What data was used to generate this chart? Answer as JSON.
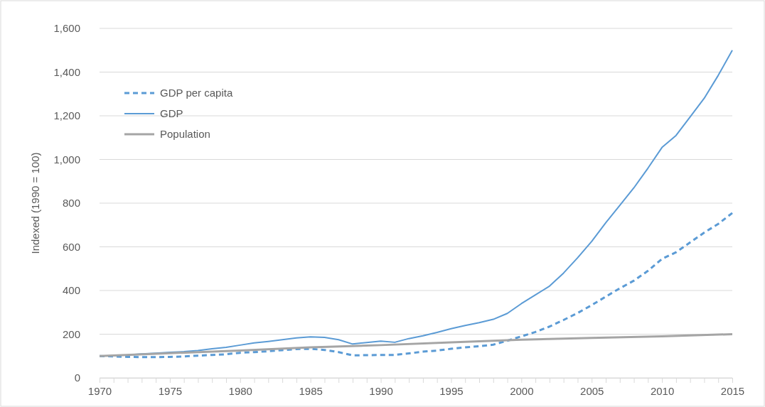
{
  "chart_data": {
    "type": "line",
    "ylabel": "Indexed (1990 = 100)",
    "xlim": [
      1970,
      2015
    ],
    "xticks": [
      1970,
      {
        "value": 1971,
        "label": null
      },
      {
        "value": 1972,
        "label": null
      },
      {
        "value": 1973,
        "label": null
      },
      {
        "value": 1974,
        "label": null
      },
      1975,
      {
        "value": 1976,
        "label": null
      },
      {
        "value": 1977,
        "label": null
      },
      {
        "value": 1978,
        "label": null
      },
      {
        "value": 1979,
        "label": null
      },
      1980,
      {
        "value": 1981,
        "label": null
      },
      {
        "value": 1982,
        "label": null
      },
      {
        "value": 1983,
        "label": null
      },
      {
        "value": 1984,
        "label": null
      },
      1985,
      {
        "value": 1986,
        "label": null
      },
      {
        "value": 1987,
        "label": null
      },
      {
        "value": 1988,
        "label": null
      },
      {
        "value": 1989,
        "label": null
      },
      1990,
      {
        "value": 1991,
        "label": null
      },
      {
        "value": 1992,
        "label": null
      },
      {
        "value": 1993,
        "label": null
      },
      {
        "value": 1994,
        "label": null
      },
      1995,
      {
        "value": 1996,
        "label": null
      },
      {
        "value": 1997,
        "label": null
      },
      {
        "value": 1998,
        "label": null
      },
      {
        "value": 1999,
        "label": null
      },
      2000,
      {
        "value": 2001,
        "label": null
      },
      {
        "value": 2002,
        "label": null
      },
      {
        "value": 2003,
        "label": null
      },
      {
        "value": 2004,
        "label": null
      },
      2005,
      {
        "value": 2006,
        "label": null
      },
      {
        "value": 2007,
        "label": null
      },
      {
        "value": 2008,
        "label": null
      },
      {
        "value": 2009,
        "label": null
      },
      2010,
      {
        "value": 2011,
        "label": null
      },
      {
        "value": 2012,
        "label": null
      },
      {
        "value": 2013,
        "label": null
      },
      {
        "value": 2014,
        "label": null
      },
      2015
    ],
    "ylim": [
      0,
      1600
    ],
    "yticks": [
      0,
      {
        "value": 200,
        "label": "200"
      },
      {
        "value": 400,
        "label": "400"
      },
      {
        "value": 600,
        "label": "600"
      },
      {
        "value": 800,
        "label": "800"
      },
      {
        "value": 1000,
        "label": "1,000"
      },
      {
        "value": 1200,
        "label": "1,200"
      },
      {
        "value": 1400,
        "label": "1,400"
      },
      {
        "value": 1600,
        "label": "1,600"
      }
    ],
    "grid": "y",
    "legend": "top left",
    "marker": "none",
    "x": [
      1970,
      1971,
      1972,
      1973,
      1974,
      1975,
      1976,
      1977,
      1978,
      1979,
      1980,
      1981,
      1982,
      1983,
      1984,
      1985,
      1986,
      1987,
      1988,
      1989,
      1990,
      1991,
      1992,
      1993,
      1994,
      1995,
      1996,
      1997,
      1998,
      1999,
      2000,
      2001,
      2002,
      2003,
      2004,
      2005,
      2006,
      2007,
      2008,
      2009,
      2010,
      2011,
      2012,
      2013,
      2014,
      2015
    ],
    "series": [
      {
        "name": "GDP per capita",
        "color": "#5b9bd5",
        "line_style": "dashed",
        "values": [
          100,
          98,
          96,
          95,
          95,
          96,
          98,
          102,
          105,
          108,
          115,
          118,
          122,
          127,
          132,
          133,
          128,
          118,
          103,
          104,
          105,
          105,
          112,
          120,
          125,
          133,
          140,
          145,
          152,
          170,
          190,
          210,
          235,
          265,
          297,
          333,
          372,
          410,
          445,
          490,
          545,
          575,
          620,
          665,
          705,
          755
        ]
      },
      {
        "name": "GDP",
        "color": "#5b9bd5",
        "line_style": "solid",
        "values": [
          100,
          102,
          105,
          110,
          113,
          117,
          120,
          125,
          133,
          140,
          150,
          160,
          167,
          175,
          183,
          188,
          185,
          175,
          155,
          162,
          168,
          163,
          180,
          193,
          208,
          225,
          240,
          253,
          268,
          295,
          340,
          380,
          420,
          480,
          550,
          625,
          710,
          790,
          870,
          960,
          1055,
          1110,
          1195,
          1280,
          1385,
          1500
        ]
      },
      {
        "name": "Population",
        "color": "#a5a5a5",
        "line_style": "solid",
        "x": [
          1970,
          1975,
          1980,
          1985,
          1990,
          1995,
          2000,
          2005,
          2010,
          2015
        ],
        "values": [
          100,
          113,
          125,
          140,
          150,
          163,
          175,
          183,
          190,
          200
        ]
      }
    ]
  }
}
